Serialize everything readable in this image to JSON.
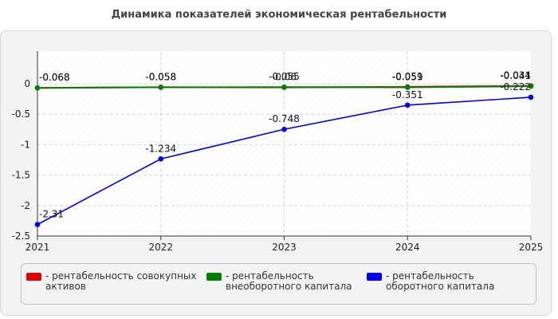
{
  "chart_data": {
    "type": "line",
    "title": "Динамика показателей экономическая рентабельности",
    "x": [
      "2021",
      "2022",
      "2023",
      "2024",
      "2025"
    ],
    "ylim": [
      -2.5,
      0
    ],
    "yticks": [
      0,
      -0.5,
      -1,
      -1.5,
      -2,
      -2.5
    ],
    "ytick_labels": [
      "0",
      "-0.5",
      "-1",
      "-1.5",
      "-2",
      "-2.5"
    ],
    "grid": true,
    "legend": "bottom",
    "series": [
      {
        "name": "- рентабельность совокупных активов",
        "color": "#e00000",
        "values": [
          -0.068,
          -0.058,
          -0.06,
          -0.051,
          -0.034
        ],
        "labels": [
          "-0.068",
          "-0.058",
          "-0.06",
          "-0.051",
          "-0.034"
        ]
      },
      {
        "name": "- рентабельность внеоборотного капитала",
        "color": "#008000",
        "values": [
          -0.068,
          -0.058,
          -0.055,
          -0.059,
          -0.041
        ],
        "labels": [
          "-0.068",
          "-0.058",
          "-0.055",
          "-0.059",
          "-0.041"
        ]
      },
      {
        "name": "- рентабельность оборотного капитала",
        "color": "#0000ee",
        "values": [
          -2.31,
          -1.234,
          -0.748,
          -0.351,
          -0.222
        ],
        "labels": [
          "-2.31",
          "-1.234",
          "-0.748",
          "-0.351",
          "-0.222"
        ]
      }
    ]
  }
}
